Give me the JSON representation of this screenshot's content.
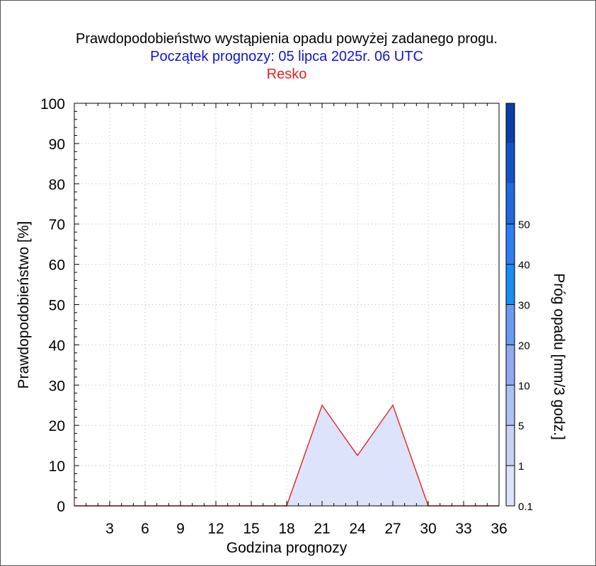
{
  "chart_data": {
    "type": "area",
    "title": "Prawdopodobieństwo wystąpienia opadu powyżej zadanego progu.",
    "subtitle": "Początek prognozy: 05 lipca 2025r. 06 UTC",
    "location": "Resko",
    "xlabel": "Godzina prognozy",
    "ylabel": "Prawdopodobieństwo [%]",
    "colorbar_label": "Próg opadu [mm/3 godz.]",
    "xlim": [
      0,
      36
    ],
    "ylim": [
      0,
      100
    ],
    "x_ticks": [
      "3",
      "6",
      "9",
      "12",
      "15",
      "18",
      "21",
      "24",
      "27",
      "30",
      "33",
      "36"
    ],
    "y_ticks": [
      "0",
      "10",
      "20",
      "30",
      "40",
      "50",
      "60",
      "70",
      "80",
      "90",
      "100"
    ],
    "grid": true,
    "series": [
      {
        "name": "0.1",
        "color": "#dde3fb",
        "line_color": "#e03030",
        "x": [
          0,
          3,
          6,
          9,
          12,
          15,
          18,
          21,
          24,
          27,
          30,
          33,
          36
        ],
        "values": [
          0,
          0,
          0,
          0,
          0,
          0,
          0,
          25,
          12.5,
          25,
          0,
          0,
          0
        ]
      }
    ],
    "colorbar": {
      "labels": [
        "0.1",
        "1",
        "5",
        "10",
        "20",
        "30",
        "40",
        "50"
      ],
      "colors": [
        "#dde3fb",
        "#c6d2f7",
        "#aec1f4",
        "#8eabf0",
        "#6a9bf0",
        "#1a8cf2",
        "#2f7ef3",
        "#2168dc",
        "#1453c4",
        "#0b3fa8"
      ]
    },
    "colors": {
      "title": "#000000",
      "subtitle": "#1212d6",
      "location": "#e82020"
    }
  }
}
